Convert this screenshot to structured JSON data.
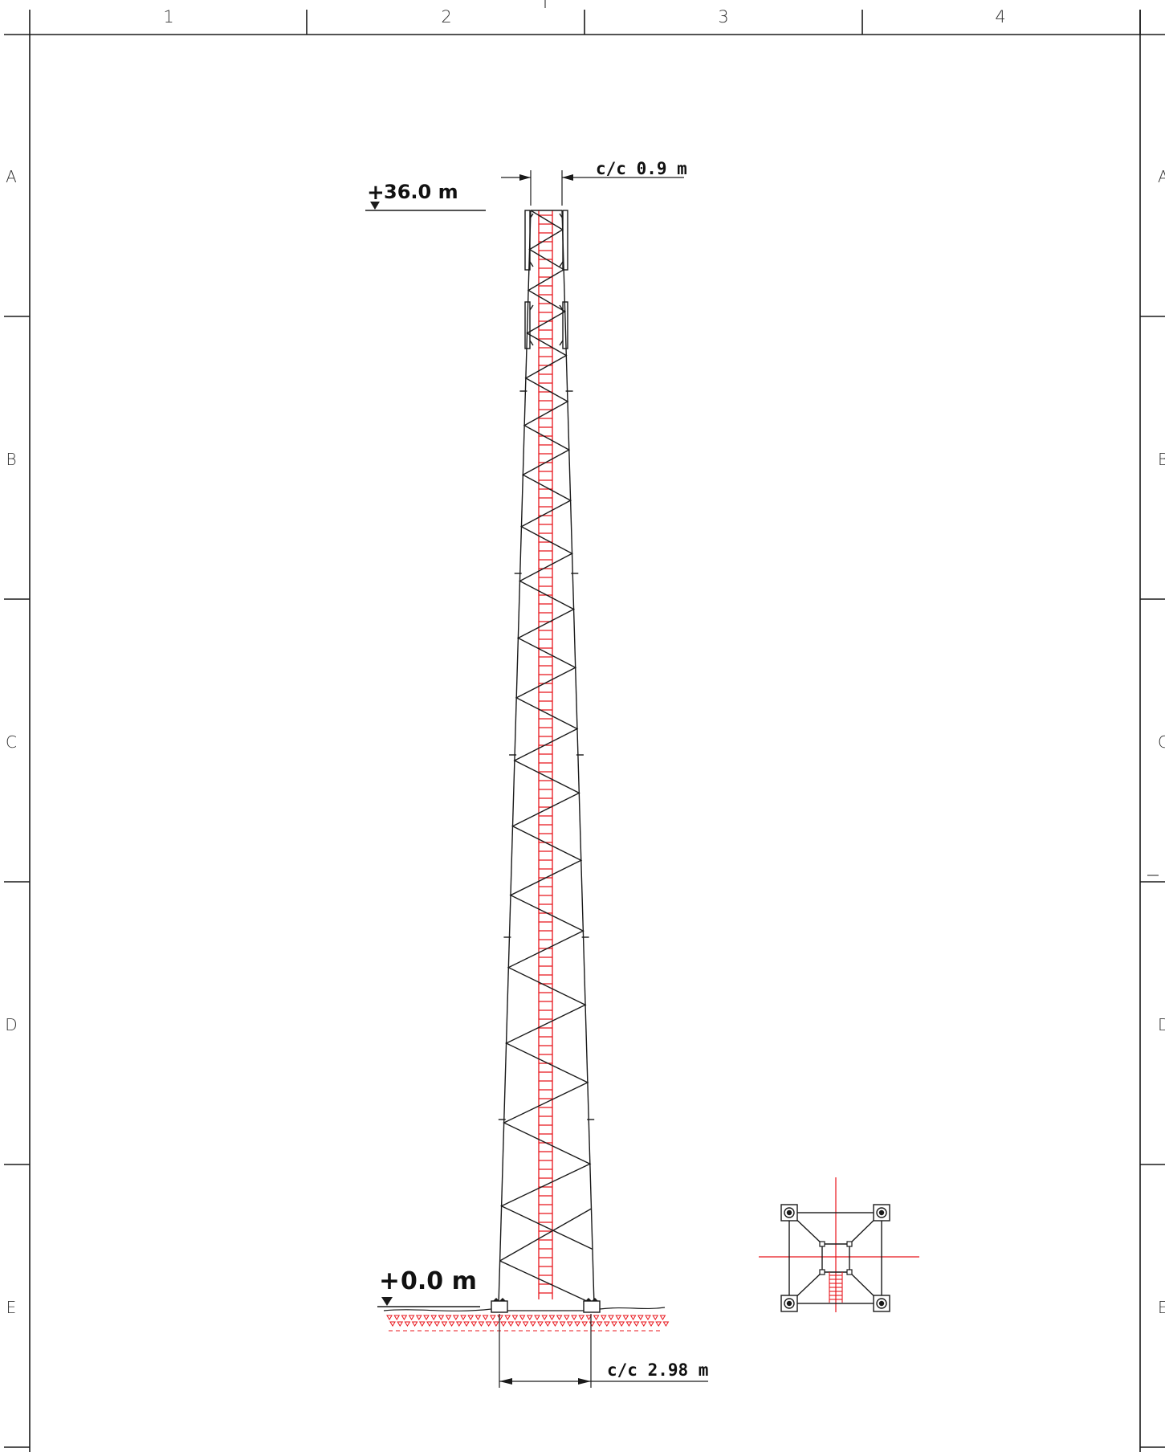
{
  "sheet": {
    "columns": [
      "1",
      "2",
      "3",
      "4"
    ],
    "rows": [
      "A",
      "B",
      "C",
      "D",
      "E"
    ],
    "right_row_partials": [
      "A",
      "B",
      "C",
      "D",
      "E"
    ]
  },
  "tower": {
    "top_level_mark": "+",
    "top_level_value": "36.0 m",
    "base_level_mark": "+",
    "base_level_value": "0.0 m",
    "top_spacing": "c/c  0.9  m",
    "base_spacing": "c/c  2.98  m"
  },
  "colors": {
    "structure": "#1a1a1a",
    "ladder": "#e8141b",
    "frame": "#1a1a1a"
  }
}
